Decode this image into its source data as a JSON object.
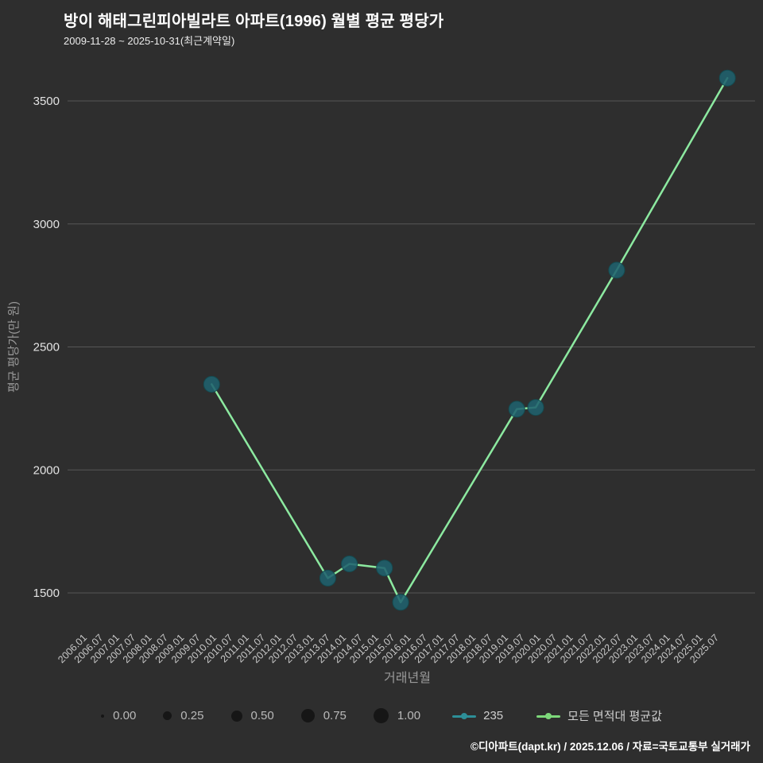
{
  "header": {
    "title": "방이 해태그린피아빌라트 아파트(1996) 월별 평균 평당가",
    "subtitle": "2009-11-28 ~ 2025-10-31(최근계약일)"
  },
  "chart_data": {
    "type": "scatter",
    "title": "방이 해태그린피아빌라트 아파트(1996) 월별 평균 평당가",
    "xlabel": "거래년월",
    "ylabel": "평균 평당가(만 원)",
    "y_ticks": [
      1500,
      2000,
      2500,
      3000,
      3500
    ],
    "ylim": [
      1390,
      3660
    ],
    "grid": true,
    "legend_position": "bottom",
    "x_ticks": [
      "2006.01",
      "2006.07",
      "2007.01",
      "2007.07",
      "2008.01",
      "2008.07",
      "2009.01",
      "2009.07",
      "2010.01",
      "2010.07",
      "2011.01",
      "2011.07",
      "2012.01",
      "2012.07",
      "2013.01",
      "2013.07",
      "2014.01",
      "2014.07",
      "2015.01",
      "2015.07",
      "2016.01",
      "2016.07",
      "2017.01",
      "2017.07",
      "2018.01",
      "2018.07",
      "2019.01",
      "2019.07",
      "2020.01",
      "2020.07",
      "2021.01",
      "2021.07",
      "2022.01",
      "2022.07",
      "2023.01",
      "2023.07",
      "2024.01",
      "2024.07",
      "2025.01",
      "2025.07"
    ],
    "series": [
      {
        "name": "235",
        "type": "scatter",
        "color": "#20626e"
      },
      {
        "name": "모든 면적대 평균값",
        "type": "line",
        "color": "#8ce9a0"
      }
    ],
    "points": [
      {
        "x": "2009.11",
        "y": 2348
      },
      {
        "x": "2013.06",
        "y": 1560
      },
      {
        "x": "2014.02",
        "y": 1618
      },
      {
        "x": "2015.03",
        "y": 1601
      },
      {
        "x": "2015.09",
        "y": 1462
      },
      {
        "x": "2019.04",
        "y": 2247
      },
      {
        "x": "2019.11",
        "y": 2254
      },
      {
        "x": "2022.05",
        "y": 2812
      },
      {
        "x": "2025.10",
        "y": 3593
      }
    ],
    "colors": {
      "background": "#2e2e2e",
      "grid": "#565656",
      "tick_label": "#e3e3e3",
      "tick_label2": "#c9c9c9",
      "axis_title": "#9a9a9a",
      "line": "#8ce9a0",
      "point": "#20626e",
      "point_stroke": "#134c52"
    }
  },
  "legend": {
    "size_scale": [
      {
        "label": "0.00",
        "d": 4
      },
      {
        "label": "0.25",
        "d": 11
      },
      {
        "label": "0.50",
        "d": 14
      },
      {
        "label": "0.75",
        "d": 17
      },
      {
        "label": "1.00",
        "d": 19
      }
    ],
    "series": [
      {
        "label": "235",
        "color": "#2d8f98"
      },
      {
        "label": "모든 면적대 평균값",
        "color": "#7dd87a"
      }
    ]
  },
  "footer": {
    "credit": "©디아파트(dapt.kr) / 2025.12.06 / 자료=국토교통부 실거래가"
  }
}
